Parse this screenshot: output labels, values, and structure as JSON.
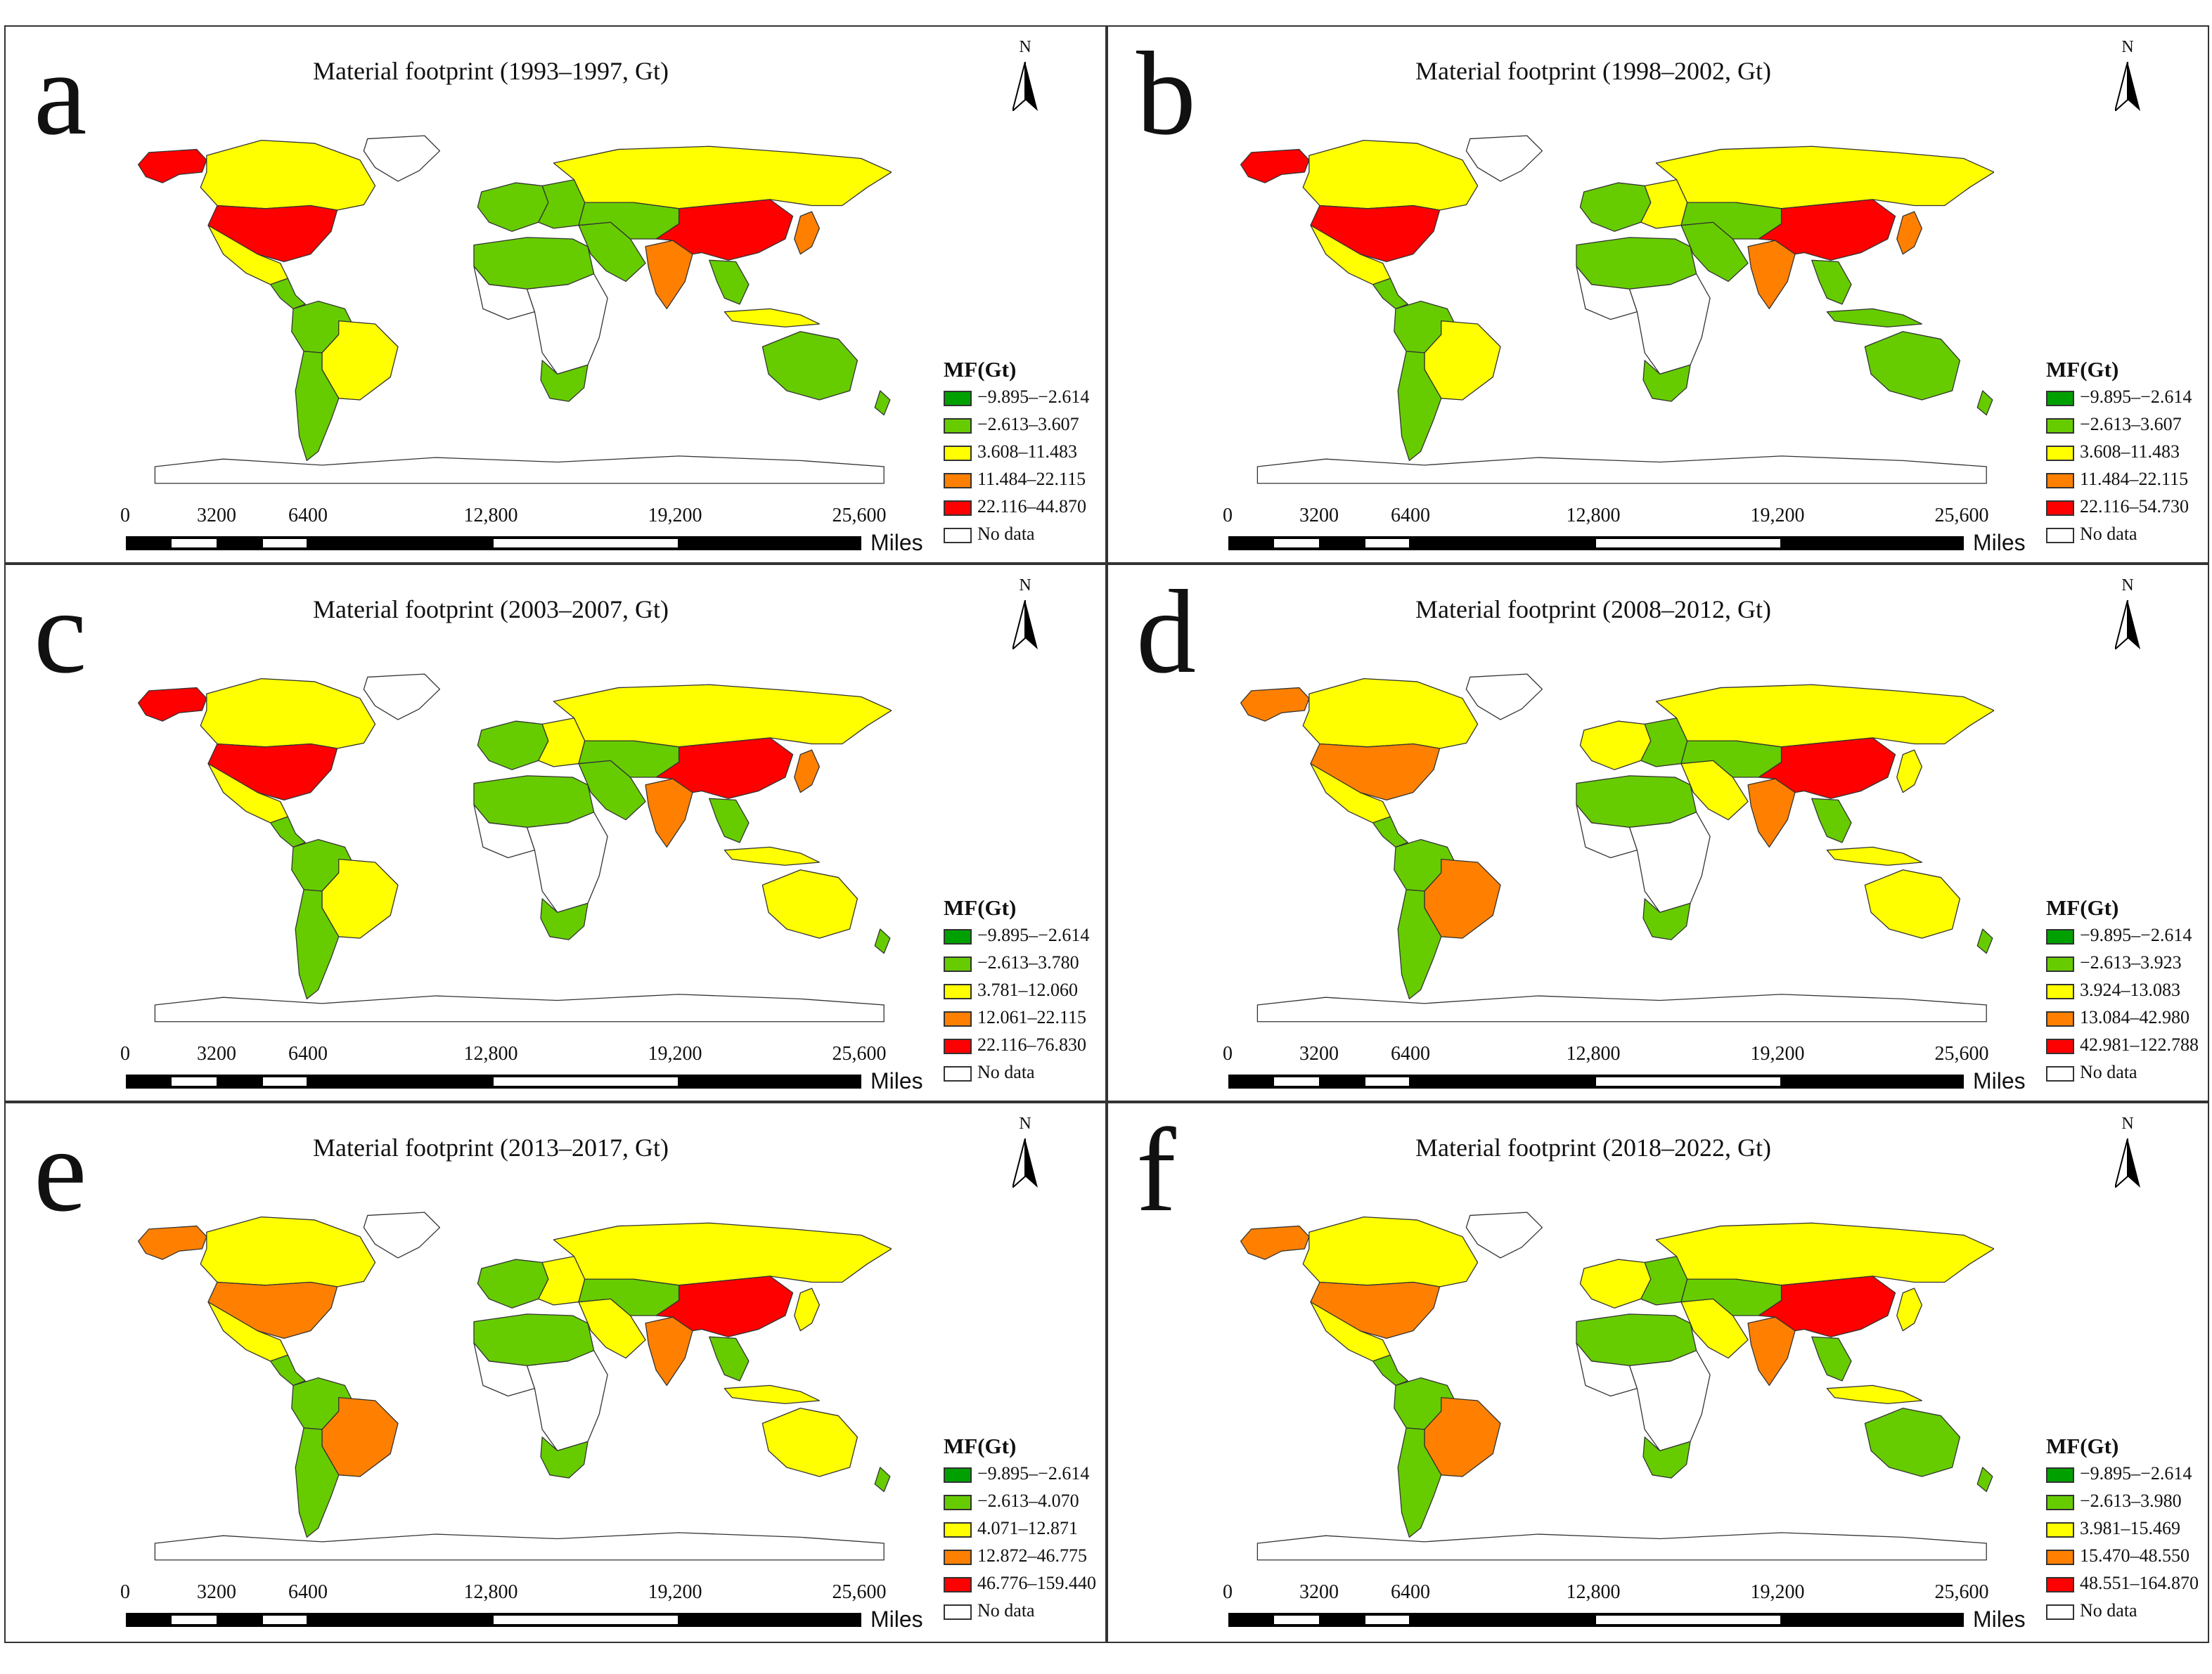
{
  "figure": {
    "colors": {
      "dark_green": "#00a000",
      "green": "#66cc00",
      "yellow": "#ffff00",
      "orange": "#ff8000",
      "red": "#ff0000",
      "no_data": "#ffffff",
      "outline": "#333333"
    },
    "north_label": "N",
    "legend_title": "MF(Gt)",
    "no_data_label": "No data",
    "scale": {
      "ticks": [
        "0",
        "3200",
        "6400",
        "12,800",
        "19,200",
        "25,600"
      ],
      "units": "Miles"
    },
    "panels": [
      {
        "letter": "a",
        "title": "Material footprint (1993–1997, Gt)",
        "legend": [
          "−9.895–−2.614",
          "−2.613–3.607",
          "3.608–11.483",
          "11.484–22.115",
          "22.116–44.870"
        ],
        "regions": {
          "north_america": "red",
          "alaska": "red",
          "canada": "yellow",
          "greenland": "no_data",
          "mexico": "yellow",
          "central_america": "green",
          "south_america_north": "green",
          "brazil": "yellow",
          "southern_cone": "green",
          "europe_west": "green",
          "europe_east": "green",
          "russia": "yellow",
          "north_africa": "green",
          "west_africa": "no_data",
          "central_africa": "no_data",
          "south_africa": "green",
          "middle_east": "green",
          "central_asia": "green",
          "india": "orange",
          "china": "red",
          "japan": "orange",
          "southeast_asia": "green",
          "indonesia": "yellow",
          "australia": "green",
          "new_zealand": "green"
        }
      },
      {
        "letter": "b",
        "title": "Material footprint (1998–2002, Gt)",
        "legend": [
          "−9.895–−2.614",
          "−2.613–3.607",
          "3.608–11.483",
          "11.484–22.115",
          "22.116–54.730"
        ],
        "regions": {
          "north_america": "red",
          "alaska": "red",
          "canada": "yellow",
          "greenland": "no_data",
          "mexico": "yellow",
          "central_america": "green",
          "south_america_north": "green",
          "brazil": "yellow",
          "southern_cone": "green",
          "europe_west": "green",
          "europe_east": "yellow",
          "russia": "yellow",
          "north_africa": "green",
          "west_africa": "no_data",
          "central_africa": "no_data",
          "south_africa": "green",
          "middle_east": "green",
          "central_asia": "green",
          "india": "orange",
          "china": "red",
          "japan": "orange",
          "southeast_asia": "green",
          "indonesia": "green",
          "australia": "green",
          "new_zealand": "green"
        }
      },
      {
        "letter": "c",
        "title": "Material footprint (2003–2007, Gt)",
        "legend": [
          "−9.895–−2.614",
          "−2.613–3.780",
          "3.781–12.060",
          "12.061–22.115",
          "22.116–76.830"
        ],
        "regions": {
          "north_america": "red",
          "alaska": "red",
          "canada": "yellow",
          "greenland": "no_data",
          "mexico": "yellow",
          "central_america": "green",
          "south_america_north": "green",
          "brazil": "yellow",
          "southern_cone": "green",
          "europe_west": "green",
          "europe_east": "yellow",
          "russia": "yellow",
          "north_africa": "green",
          "west_africa": "no_data",
          "central_africa": "no_data",
          "south_africa": "green",
          "middle_east": "green",
          "central_asia": "green",
          "india": "orange",
          "china": "red",
          "japan": "orange",
          "southeast_asia": "green",
          "indonesia": "yellow",
          "australia": "yellow",
          "new_zealand": "green"
        }
      },
      {
        "letter": "d",
        "title": "Material footprint (2008–2012, Gt)",
        "legend": [
          "−9.895–−2.614",
          "−2.613–3.923",
          "3.924–13.083",
          "13.084–42.980",
          "42.981–122.788"
        ],
        "regions": {
          "north_america": "orange",
          "alaska": "orange",
          "canada": "yellow",
          "greenland": "no_data",
          "mexico": "yellow",
          "central_america": "green",
          "south_america_north": "green",
          "brazil": "orange",
          "southern_cone": "green",
          "europe_west": "yellow",
          "europe_east": "green",
          "russia": "yellow",
          "north_africa": "green",
          "west_africa": "no_data",
          "central_africa": "no_data",
          "south_africa": "green",
          "middle_east": "yellow",
          "central_asia": "green",
          "india": "orange",
          "china": "red",
          "japan": "yellow",
          "southeast_asia": "green",
          "indonesia": "yellow",
          "australia": "yellow",
          "new_zealand": "green"
        }
      },
      {
        "letter": "e",
        "title": "Material footprint (2013–2017, Gt)",
        "legend": [
          "−9.895–−2.614",
          "−2.613–4.070",
          "4.071–12.871",
          "12.872–46.775",
          "46.776–159.440"
        ],
        "regions": {
          "north_america": "orange",
          "alaska": "orange",
          "canada": "yellow",
          "greenland": "no_data",
          "mexico": "yellow",
          "central_america": "green",
          "south_america_north": "green",
          "brazil": "orange",
          "southern_cone": "green",
          "europe_west": "green",
          "europe_east": "yellow",
          "russia": "yellow",
          "north_africa": "green",
          "west_africa": "no_data",
          "central_africa": "no_data",
          "south_africa": "green",
          "middle_east": "yellow",
          "central_asia": "green",
          "india": "orange",
          "china": "red",
          "japan": "yellow",
          "southeast_asia": "green",
          "indonesia": "yellow",
          "australia": "yellow",
          "new_zealand": "green"
        }
      },
      {
        "letter": "f",
        "title": "Material footprint (2018–2022, Gt)",
        "legend": [
          "−9.895–−2.614",
          "−2.613–3.980",
          "3.981–15.469",
          "15.470–48.550",
          "48.551–164.870"
        ],
        "regions": {
          "north_america": "orange",
          "alaska": "orange",
          "canada": "yellow",
          "greenland": "no_data",
          "mexico": "yellow",
          "central_america": "green",
          "south_america_north": "green",
          "brazil": "orange",
          "southern_cone": "green",
          "europe_west": "yellow",
          "europe_east": "green",
          "russia": "yellow",
          "north_africa": "green",
          "west_africa": "no_data",
          "central_africa": "no_data",
          "south_africa": "green",
          "middle_east": "yellow",
          "central_asia": "green",
          "india": "orange",
          "china": "red",
          "japan": "yellow",
          "southeast_asia": "green",
          "indonesia": "yellow",
          "australia": "green",
          "new_zealand": "green"
        }
      }
    ]
  }
}
